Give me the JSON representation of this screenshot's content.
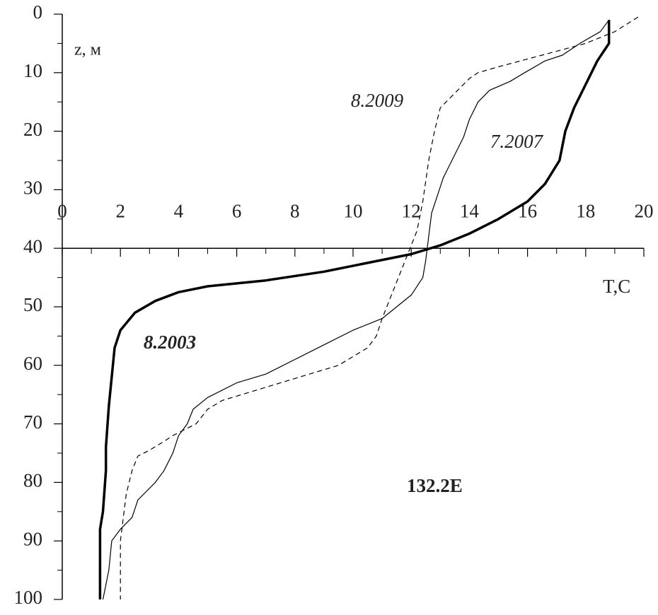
{
  "chart_data": {
    "type": "line",
    "annotation": "132.2E",
    "x_label": "T,C",
    "y_label": "z, м",
    "xlim": [
      0,
      20
    ],
    "xticks": [
      0,
      2,
      4,
      6,
      8,
      10,
      12,
      14,
      16,
      18,
      20
    ],
    "ylim": [
      0,
      100
    ],
    "yticks": [
      0,
      10,
      20,
      30,
      40,
      50,
      60,
      70,
      80,
      90,
      100
    ],
    "y_inverted": true,
    "x_axis_crossing": 40,
    "series": [
      {
        "name": "8.2003",
        "color": "#000000",
        "style": "bold",
        "x": [
          18.8,
          18.8,
          18.4,
          18.0,
          17.6,
          17.3,
          17.1,
          16.6,
          16.0,
          15.0,
          14.0,
          13.0,
          12.0,
          10.5,
          9.0,
          7.0,
          5.0,
          4.0,
          3.2,
          2.5,
          2.0,
          1.8,
          1.7,
          1.6,
          1.5,
          1.5,
          1.4,
          1.3,
          1.3,
          1.3
        ],
        "values": [
          1,
          5,
          8,
          12,
          16,
          20,
          25,
          29,
          32,
          35,
          37.5,
          39.5,
          41,
          42.5,
          44,
          45.5,
          46.5,
          47.5,
          49,
          51,
          54,
          57,
          62,
          67,
          74,
          78,
          85,
          88,
          95,
          100
        ]
      },
      {
        "name": "7.2007",
        "color": "#000000",
        "style": "thin",
        "x": [
          18.8,
          18.5,
          17.8,
          17.2,
          16.6,
          15.9,
          15.4,
          14.7,
          14.3,
          14.0,
          13.8,
          13.4,
          13.1,
          12.9,
          12.7,
          12.6,
          12.5,
          12.4,
          12.0,
          11.0,
          10.0,
          9.0,
          8.0,
          7.0,
          6.0,
          5.0,
          4.5,
          4.3,
          4.0,
          3.8,
          3.5,
          3.2,
          2.8,
          2.6,
          2.4,
          2.0,
          1.7,
          1.6,
          1.4
        ],
        "values": [
          1,
          3,
          5,
          7,
          8,
          10,
          11.5,
          13,
          15,
          18,
          21,
          25,
          28,
          31,
          34,
          38,
          42,
          45,
          48,
          52,
          54,
          56.5,
          59,
          61.5,
          63,
          65.5,
          67.5,
          70,
          72,
          75,
          78,
          80,
          82,
          83,
          86,
          88,
          90,
          95,
          100
        ]
      },
      {
        "name": "8.2009",
        "color": "#000000",
        "style": "dashed",
        "x": [
          19.8,
          19.0,
          18.0,
          16.5,
          15.0,
          14.3,
          14.0,
          13.6,
          13.2,
          13.0,
          12.8,
          12.6,
          12.4,
          12.2,
          11.8,
          11.4,
          11.0,
          10.8,
          10.5,
          9.5,
          8.5,
          7.5,
          6.5,
          5.5,
          5.0,
          4.6,
          4.2,
          3.8,
          3.5,
          3.0,
          2.6,
          2.4,
          2.2,
          2.1,
          2.0,
          2.0,
          2.0
        ],
        "values": [
          0.5,
          3,
          5,
          7,
          9,
          10,
          11,
          13,
          15,
          16,
          20,
          25,
          32,
          37,
          42,
          47,
          52,
          55,
          57,
          60,
          61.5,
          63,
          64.5,
          66,
          67.5,
          70,
          71,
          72,
          73,
          74.5,
          75.5,
          78,
          82,
          86,
          90,
          95,
          100
        ]
      }
    ]
  }
}
